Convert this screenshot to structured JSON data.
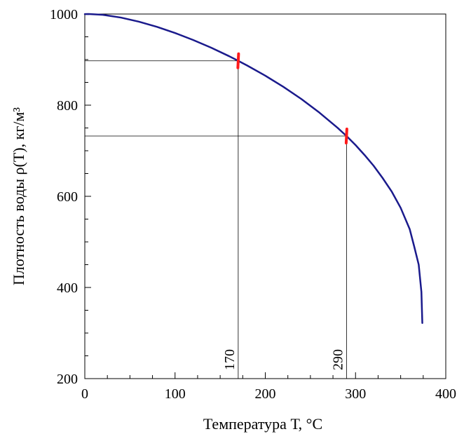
{
  "chart_data": {
    "type": "line",
    "xlabel": "Температура Т, °С",
    "ylabel": "Плотность воды ρ(Т), кг/м³",
    "xlim": [
      0,
      400
    ],
    "ylim": [
      200,
      1000
    ],
    "x_ticks": [
      0,
      100,
      200,
      300,
      400
    ],
    "x_tick_labels": [
      "0",
      "100",
      "200",
      "300",
      "400"
    ],
    "y_ticks": [
      200,
      400,
      600,
      800,
      1000
    ],
    "y_tick_labels": [
      "200",
      "400",
      "600",
      "800",
      "1000"
    ],
    "grid": false,
    "series": [
      {
        "x": [
          0,
          4,
          20,
          40,
          60,
          80,
          100,
          120,
          140,
          160,
          170,
          180,
          200,
          220,
          240,
          260,
          280,
          290,
          300,
          310,
          320,
          330,
          340,
          350,
          360,
          365,
          370,
          373,
          374
        ],
        "y": [
          999.8,
          1000,
          998.2,
          992.2,
          983.2,
          971.8,
          958.4,
          943.1,
          926.1,
          907.4,
          897.3,
          886.9,
          864.7,
          840.3,
          813.5,
          783.6,
          750.5,
          732.3,
          712.5,
          690.6,
          667.1,
          640.2,
          610.7,
          574.7,
          528.1,
          490.0,
          450.0,
          390.0,
          322.0
        ],
        "color": "#1a1a8c"
      }
    ],
    "annotations": [
      {
        "x": 170,
        "y": 897.3,
        "label": "170",
        "color": "#ff1a1a"
      },
      {
        "x": 290,
        "y": 732.3,
        "label": "290",
        "color": "#ff1a1a"
      }
    ]
  }
}
